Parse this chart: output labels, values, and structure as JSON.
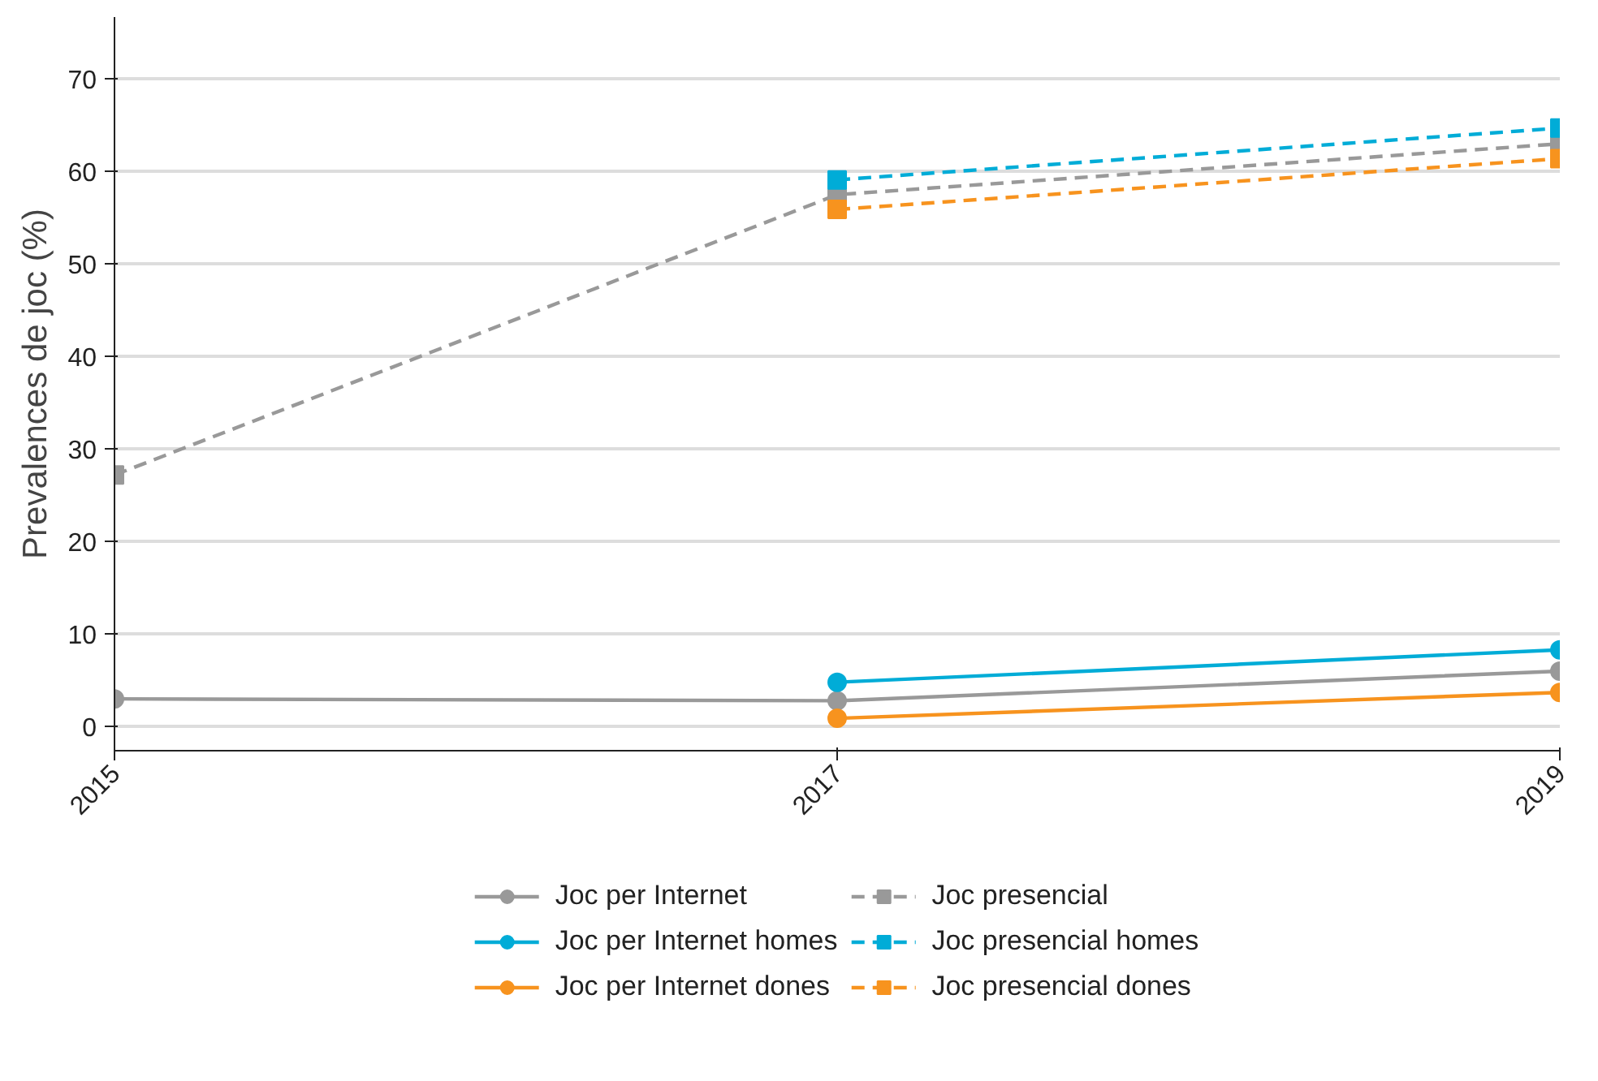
{
  "chart_data": {
    "type": "line",
    "ylabel": "Prevalences de joc (%)",
    "x": [
      2015,
      2017,
      2019
    ],
    "xlim": [
      2015,
      2019
    ],
    "xticks": [
      2015,
      2017,
      2019
    ],
    "ylim": [
      -2.6,
      76.7
    ],
    "yticks": [
      0,
      10,
      20,
      30,
      40,
      50,
      60,
      70
    ],
    "grid": "y",
    "legend": "bottom",
    "series": [
      {
        "name": "Joc per Internet",
        "color": "#999999",
        "marker": "circle",
        "line_style": "solid",
        "values": [
          3.0,
          2.8,
          6.0
        ]
      },
      {
        "name": "Joc per Internet homes",
        "color": "#00acd7",
        "marker": "circle",
        "line_style": "solid",
        "values": [
          null,
          4.8,
          8.3
        ]
      },
      {
        "name": "Joc per Internet dones",
        "color": "#f7931e",
        "marker": "circle",
        "line_style": "solid",
        "values": [
          null,
          0.9,
          3.7
        ]
      },
      {
        "name": "Joc presencial",
        "color": "#999999",
        "marker": "square",
        "line_style": "dashed",
        "values": [
          27.2,
          57.5,
          63.0
        ]
      },
      {
        "name": "Joc presencial homes",
        "color": "#00acd7",
        "marker": "square",
        "line_style": "dashed",
        "values": [
          null,
          59.1,
          64.7
        ]
      },
      {
        "name": "Joc presencial dones",
        "color": "#f7931e",
        "marker": "square",
        "line_style": "dashed",
        "values": [
          null,
          55.9,
          61.4
        ]
      }
    ]
  }
}
